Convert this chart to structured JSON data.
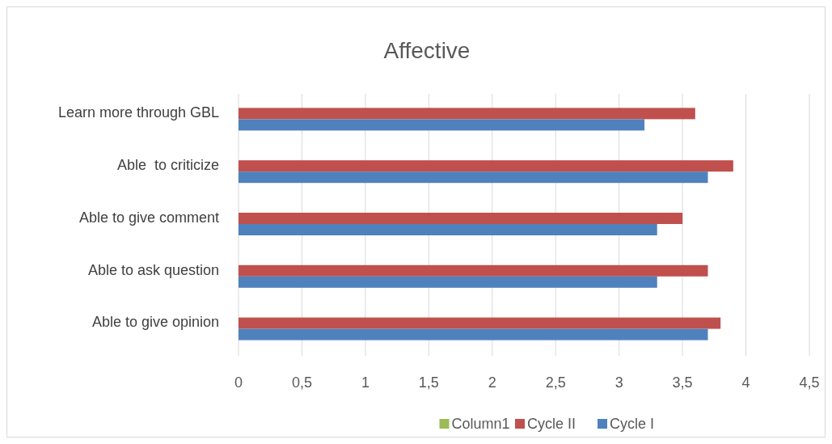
{
  "chart_data": {
    "type": "bar",
    "orientation": "horizontal",
    "title": "Affective",
    "categories": [
      "Learn more through GBL",
      "Able  to criticize",
      "Able to give comment",
      "Able to ask question",
      "Able to give opinion"
    ],
    "series": [
      {
        "name": "Column1",
        "color": "#9bbb59",
        "values": [
          null,
          null,
          null,
          null,
          null
        ]
      },
      {
        "name": "Cycle II",
        "color": "#c0504d",
        "values": [
          3.6,
          3.9,
          3.5,
          3.7,
          3.8
        ]
      },
      {
        "name": "Cycle I",
        "color": "#4f81bd",
        "values": [
          3.2,
          3.7,
          3.3,
          3.3,
          3.7
        ]
      }
    ],
    "xlim": [
      0,
      4.5
    ],
    "xticks": [
      0,
      {
        "value": 0.5,
        "label": "0,5"
      },
      1,
      {
        "value": 1.5,
        "label": "1,5"
      },
      2,
      {
        "value": 2.5,
        "label": "2,5"
      },
      3,
      {
        "value": 3.5,
        "label": "3,5"
      },
      4,
      {
        "value": 4.5,
        "label": "4,5"
      }
    ],
    "grid": "x",
    "legend": "bottom"
  }
}
